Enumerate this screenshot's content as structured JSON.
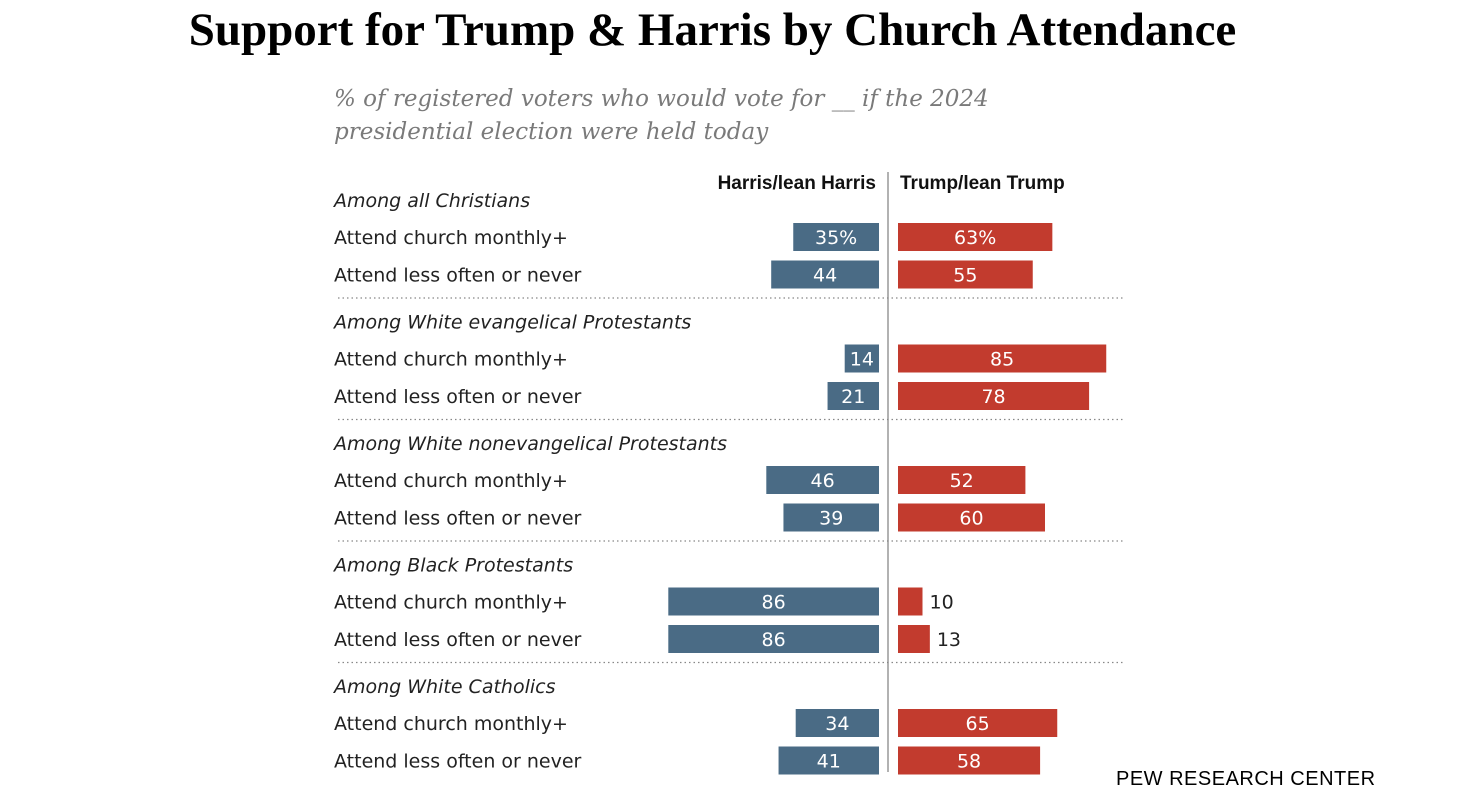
{
  "title": "Support for Trump & Harris by Church Attendance",
  "subtitle_lines": [
    "% of registered voters who would vote for __ if the 2024",
    "presidential election were held today"
  ],
  "source": "PEW RESEARCH CENTER",
  "colors": {
    "harris": "#4a6b85",
    "trump": "#c23b2e",
    "divider": "#999999",
    "label_in": "#ffffff",
    "label_out": "#222222"
  },
  "chart_data": {
    "type": "bar",
    "orientation": "horizontal",
    "layout": "diverging",
    "series": [
      {
        "name": "Harris/lean Harris",
        "color": "#4a6b85"
      },
      {
        "name": "Trump/lean Trump",
        "color": "#c23b2e"
      }
    ],
    "groups": [
      {
        "label": "Among all Christians",
        "rows": [
          {
            "label": "Attend church monthly+",
            "harris": 35,
            "trump": 63,
            "harris_text": "35%",
            "trump_text": "63%"
          },
          {
            "label": "Attend less often or never",
            "harris": 44,
            "trump": 55,
            "harris_text": "44",
            "trump_text": "55"
          }
        ]
      },
      {
        "label": "Among White evangelical Protestants",
        "rows": [
          {
            "label": "Attend church monthly+",
            "harris": 14,
            "trump": 85,
            "harris_text": "14",
            "trump_text": "85"
          },
          {
            "label": "Attend less often or never",
            "harris": 21,
            "trump": 78,
            "harris_text": "21",
            "trump_text": "78"
          }
        ]
      },
      {
        "label": "Among White nonevangelical Protestants",
        "rows": [
          {
            "label": "Attend church monthly+",
            "harris": 46,
            "trump": 52,
            "harris_text": "46",
            "trump_text": "52"
          },
          {
            "label": "Attend less often or never",
            "harris": 39,
            "trump": 60,
            "harris_text": "39",
            "trump_text": "60"
          }
        ]
      },
      {
        "label": "Among Black Protestants",
        "rows": [
          {
            "label": "Attend church monthly+",
            "harris": 86,
            "trump": 10,
            "harris_text": "86",
            "trump_text": "10"
          },
          {
            "label": "Attend less often or never",
            "harris": 86,
            "trump": 13,
            "harris_text": "86",
            "trump_text": "13"
          }
        ]
      },
      {
        "label": "Among White Catholics",
        "rows": [
          {
            "label": "Attend church monthly+",
            "harris": 34,
            "trump": 65,
            "harris_text": "34",
            "trump_text": "65"
          },
          {
            "label": "Attend less often or never",
            "harris": 41,
            "trump": 58,
            "harris_text": "41",
            "trump_text": "58"
          }
        ]
      }
    ]
  }
}
